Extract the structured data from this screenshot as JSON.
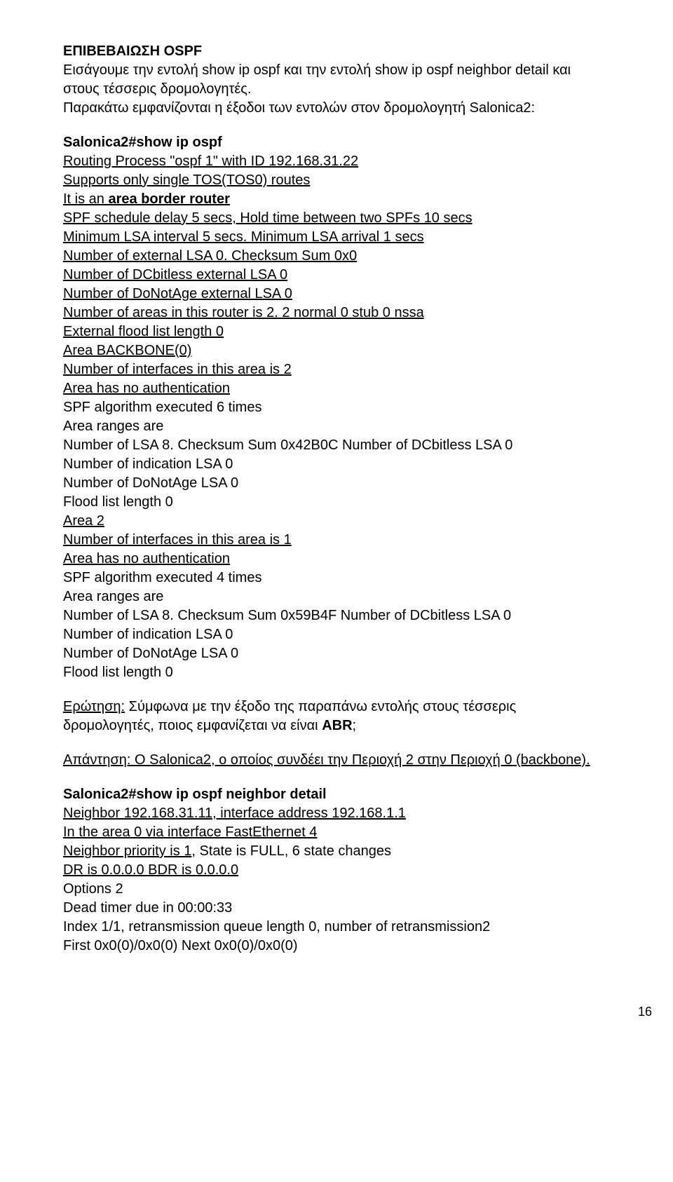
{
  "header": {
    "title": "ΕΠΙΒΕΒΑΙΩΣΗ OSPF",
    "intro1": "Εισάγουμε την εντολή show ip ospf και την εντολή show ip ospf neighbor detail και στους τέσσερις δρομολογητές.",
    "intro2": "Παρακάτω εμφανίζονται η έξοδοι των εντολών στον δρομολογητή Salonica2:"
  },
  "cli": {
    "cmd1": "Salonica2#show ip ospf",
    "l1": "Routing Process \"ospf 1\" with ID 192.168.31.22",
    "l2": "Supports only single TOS(TOS0) routes",
    "l3a": "It is an ",
    "l3b": "area border router",
    "l4": "SPF schedule delay 5 secs, Hold time between two SPFs 10 secs",
    "l5": "Minimum LSA interval 5 secs. Minimum LSA arrival 1 secs",
    "l6": "Number of external LSA 0. Checksum Sum 0x0",
    "l7": "Number of DCbitless external LSA 0",
    "l8": "Number of DoNotAge external LSA 0",
    "l9": "Number of areas in this router is 2. 2 normal 0 stub 0 nssa",
    "l10": "External flood list length 0",
    "l11": "Area BACKBONE(0)",
    "l12": "Number of interfaces in this area is 2",
    "l13": "Area has no authentication",
    "l14": "SPF algorithm executed 6 times",
    "l15": "Area ranges are",
    "l16": "Number of LSA 8. Checksum Sum 0x42B0C Number of DCbitless LSA 0",
    "l17": "Number of indication LSA 0",
    "l18": "Number of DoNotAge LSA 0",
    "l19": "Flood list length 0",
    "l20": "Area 2",
    "l21": "Number of interfaces in this area is 1",
    "l22": "Area has no authentication",
    "l23": "SPF algorithm executed 4 times",
    "l24": "Area ranges are",
    "l25": "Number of LSA 8. Checksum Sum 0x59B4F Number of DCbitless LSA 0",
    "l26": "Number of indication LSA 0",
    "l27": "Number of DoNotAge LSA 0",
    "l28": "Flood list length 0"
  },
  "qa": {
    "q_label": "Ερώτηση:",
    "q_text": " Σύμφωνα με την έξοδο της παραπάνω εντολής στους τέσσερις δρομολογητές, ποιος εμφανίζεται να είναι ",
    "q_bold": "ABR",
    "q_end": ";",
    "a_label": "Απάντηση:",
    "a_text": " Ο Salonica2, ο οποίος συνδέει την Περιοχή 2 στην Περιοχή 0 (backbone)."
  },
  "cli2": {
    "cmd2": "Salonica2#show ip ospf neighbor detail",
    "n1": "Neighbor 192.168.31.11, interface address 192.168.1.1",
    "n2": "In the area 0 via interface FastEthernet 4",
    "n3a": "Neighbor priority is 1",
    "n3b": ", State is FULL, 6 state changes",
    "n4": "DR is 0.0.0.0 BDR is 0.0.0.0",
    "n5": "Options 2",
    "n6": "Dead timer due in 00:00:33",
    "n7": "Index 1/1, retransmission queue length 0, number of retransmission2",
    "n8": "First 0x0(0)/0x0(0) Next 0x0(0)/0x0(0)"
  },
  "page_number": "16"
}
